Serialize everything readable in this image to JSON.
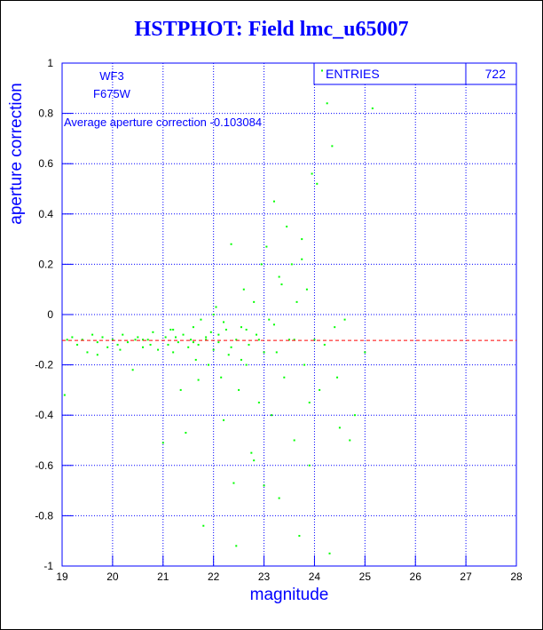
{
  "chart_data": {
    "type": "scatter",
    "title": "HSTPHOT: Field lmc_u65007",
    "x_label": "magnitude",
    "y_label": "aperture correction",
    "annotations": [
      "WF3",
      "F675W"
    ],
    "mean_label": "Average aperture correction",
    "mean_value": -0.103084,
    "mean_color": "#ff0000",
    "stats_label": "ENTRIES",
    "entries": 722,
    "color": "#00ff00",
    "grid": true,
    "xlim": [
      19,
      28
    ],
    "ylim": [
      -1,
      1
    ],
    "xticks": [
      19,
      20,
      21,
      22,
      23,
      24,
      25,
      26,
      27,
      28
    ],
    "yticks": [
      -1,
      -0.8,
      -0.6,
      -0.4,
      -0.2,
      0,
      0.2,
      0.4,
      0.6,
      0.8,
      1
    ],
    "x": [
      19.05,
      19.1,
      19.2,
      19.3,
      19.4,
      19.5,
      19.6,
      19.7,
      19.8,
      19.9,
      20.0,
      20.1,
      20.2,
      20.3,
      20.4,
      20.5,
      20.6,
      20.7,
      20.8,
      20.9,
      21.0,
      21.05,
      21.1,
      21.15,
      21.2,
      21.3,
      21.35,
      21.4,
      21.45,
      21.5,
      21.55,
      21.6,
      21.65,
      21.7,
      21.75,
      21.8,
      21.85,
      21.9,
      21.95,
      22.0,
      22.05,
      22.1,
      22.15,
      22.2,
      22.25,
      22.3,
      22.35,
      22.4,
      22.45,
      22.5,
      22.55,
      22.6,
      22.65,
      22.7,
      22.75,
      22.8,
      22.85,
      22.9,
      22.95,
      23.0,
      23.0,
      23.05,
      23.1,
      23.15,
      23.2,
      23.25,
      23.3,
      23.35,
      23.4,
      23.45,
      23.5,
      23.55,
      23.6,
      23.65,
      23.7,
      23.75,
      23.8,
      23.85,
      23.9,
      23.95,
      24.0,
      24.05,
      24.1,
      24.15,
      24.2,
      24.25,
      24.3,
      24.35,
      24.4,
      24.45,
      24.5,
      24.6,
      24.7,
      24.8,
      25.0,
      25.15,
      22.45,
      22.8,
      21.85,
      19.7,
      20.15,
      20.45,
      20.75,
      21.25,
      21.6,
      22.1,
      22.35,
      22.65,
      22.9,
      23.2,
      23.3,
      23.6,
      23.75,
      23.9,
      22.0,
      22.2,
      22.55,
      21.7,
      21.2,
      20.6
    ],
    "values": [
      -0.32,
      -0.1,
      -0.09,
      -0.12,
      -0.1,
      -0.15,
      -0.08,
      -0.11,
      -0.09,
      -0.13,
      -0.1,
      -0.12,
      -0.08,
      -0.11,
      -0.22,
      -0.09,
      -0.13,
      -0.1,
      -0.07,
      -0.14,
      -0.51,
      -0.09,
      -0.12,
      -0.06,
      -0.15,
      -0.11,
      -0.3,
      -0.08,
      -0.47,
      -0.13,
      -0.1,
      -0.05,
      -0.18,
      -0.12,
      -0.02,
      -0.84,
      -0.09,
      -0.2,
      -0.07,
      -0.14,
      0.03,
      -0.11,
      -0.25,
      -0.42,
      -0.06,
      -0.16,
      0.28,
      -0.67,
      -0.1,
      -0.3,
      -0.05,
      0.1,
      -0.2,
      -0.12,
      -0.55,
      0.05,
      -0.08,
      -0.35,
      0.2,
      -0.15,
      -0.68,
      0.27,
      -0.02,
      -0.4,
      0.45,
      -0.15,
      -0.73,
      0.12,
      -0.25,
      0.35,
      -0.1,
      0.2,
      -0.5,
      0.05,
      -0.88,
      0.3,
      -0.2,
      0.1,
      -0.35,
      0.56,
      -0.1,
      0.52,
      -0.3,
      0.97,
      -0.12,
      0.84,
      -0.95,
      0.67,
      -0.05,
      -0.25,
      -0.45,
      -0.02,
      -0.5,
      -0.4,
      -0.15,
      0.82,
      -0.92,
      -0.58,
      -0.1,
      -0.16,
      -0.14,
      -0.1,
      -0.12,
      -0.09,
      -0.11,
      -0.08,
      -0.13,
      -0.06,
      -0.1,
      -0.04,
      0.15,
      -0.1,
      0.22,
      -0.6,
      0.0,
      -0.03,
      -0.18,
      -0.26,
      -0.06,
      -0.1
    ]
  }
}
